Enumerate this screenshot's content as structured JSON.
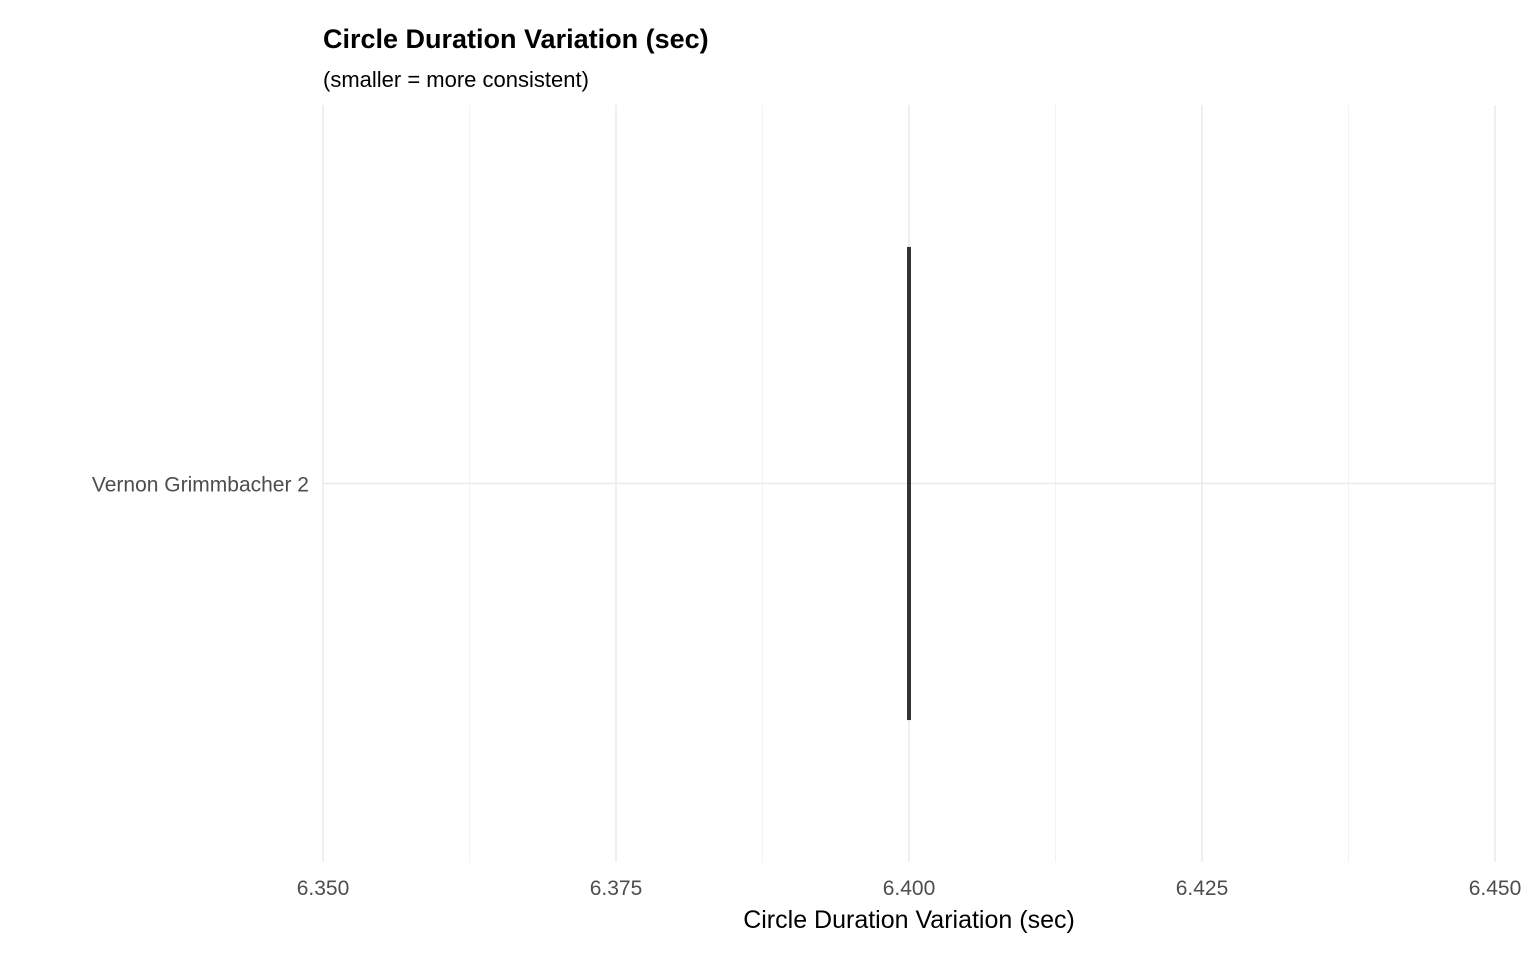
{
  "chart_data": {
    "type": "bar",
    "orientation": "horizontal",
    "title": "Circle Duration Variation (sec)",
    "subtitle": "(smaller = more consistent)",
    "xlabel": "Circle Duration Variation (sec)",
    "ylabel": "",
    "categories": [
      "Vernon Grimmbacher 2"
    ],
    "values": [
      6.4
    ],
    "xlim": [
      6.35,
      6.45
    ],
    "x_ticks": [
      6.35,
      6.375,
      6.4,
      6.425,
      6.45
    ],
    "x_tick_labels": [
      "6.350",
      "6.375",
      "6.400",
      "6.425",
      "6.450"
    ],
    "grid": true,
    "legend": "none",
    "bar_color": "#333333"
  }
}
